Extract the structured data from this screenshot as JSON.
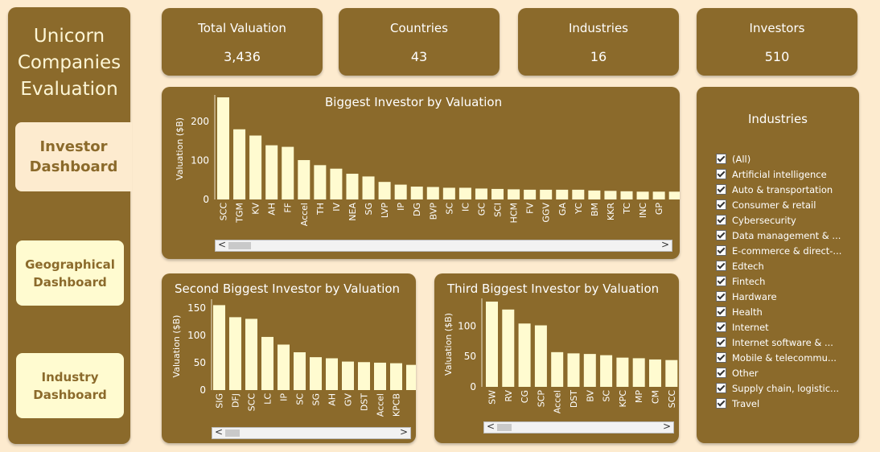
{
  "sidebar": {
    "title_lines": [
      "Unicorn",
      "Companies",
      "Evaluation"
    ],
    "nav": [
      {
        "label_lines": [
          "Investor",
          "Dashboard"
        ],
        "active": true
      },
      {
        "label_lines": [
          "Geographical",
          "Dashboard"
        ],
        "active": false
      },
      {
        "label_lines": [
          "Industry",
          "Dashboard"
        ],
        "active": false
      }
    ]
  },
  "kpis": [
    {
      "label": "Total Valuation",
      "value": "3,436"
    },
    {
      "label": "Countries",
      "value": "43"
    },
    {
      "label": "Industries",
      "value": "16"
    },
    {
      "label": "Investors",
      "value": "510"
    }
  ],
  "filter": {
    "title": "Industries",
    "items": [
      "(All)",
      "Artificial intelligence",
      "Auto & transportation",
      "Consumer & retail",
      "Cybersecurity",
      "Data management & ...",
      "E-commerce & direct-...",
      "Edtech",
      "Fintech",
      "Hardware",
      "Health",
      "Internet",
      "Internet software & ...",
      "Mobile & telecommu...",
      "Other",
      "Supply chain, logistic...",
      "Travel"
    ]
  },
  "colors": {
    "panel": "#8b6a2b",
    "bar": "#fffbd0",
    "background": "#fdebcf"
  },
  "chart_data": [
    {
      "type": "bar",
      "title": "Biggest Investor by Valuation",
      "ylabel": "Valuation ($B)",
      "ylim": [
        0,
        260
      ],
      "yticks": [
        0,
        100,
        200
      ],
      "categories": [
        "SCC",
        "TGM",
        "KV",
        "AH",
        "FF",
        "Accel",
        "TH",
        "IV",
        "NEA",
        "SG",
        "LVP",
        "IP",
        "DG",
        "BVP",
        "SC",
        "IC",
        "GC",
        "SCI",
        "HCM",
        "FV",
        "GGV",
        "GA",
        "YC",
        "BM",
        "KKR",
        "TC",
        "INC",
        "GP",
        ""
      ],
      "values": [
        262,
        180,
        164,
        139,
        135,
        101,
        88,
        79,
        66,
        59,
        45,
        38,
        33,
        32,
        30,
        30,
        28,
        27,
        26,
        25,
        25,
        25,
        25,
        23,
        22,
        21,
        20,
        20,
        20
      ]
    },
    {
      "type": "bar",
      "title": "Second Biggest Investor by Valuation",
      "ylabel": "Valuation ($B)",
      "ylim": [
        0,
        160
      ],
      "yticks": [
        0,
        50,
        100,
        150
      ],
      "categories": [
        "SIG",
        "DFJ",
        "SCC",
        "LC",
        "IP",
        "SC",
        "SG",
        "AH",
        "GV",
        "DST",
        "Accel",
        "KPCB",
        ""
      ],
      "values": [
        155,
        133,
        130,
        97,
        83,
        69,
        60,
        58,
        52,
        51,
        50,
        49,
        46
      ]
    },
    {
      "type": "bar",
      "title": "Third Biggest Investor by Valuation",
      "ylabel": "Valuation ($B)",
      "ylim": [
        0,
        140
      ],
      "yticks": [
        0,
        50,
        100
      ],
      "categories": [
        "SW",
        "RV",
        "CG",
        "SCP",
        "Accel",
        "DST",
        "BV",
        "SC",
        "KPC",
        "MP",
        "CM",
        "SCC"
      ],
      "values": [
        140,
        127,
        104,
        101,
        57,
        55,
        54,
        52,
        48,
        47,
        45,
        44
      ]
    }
  ]
}
